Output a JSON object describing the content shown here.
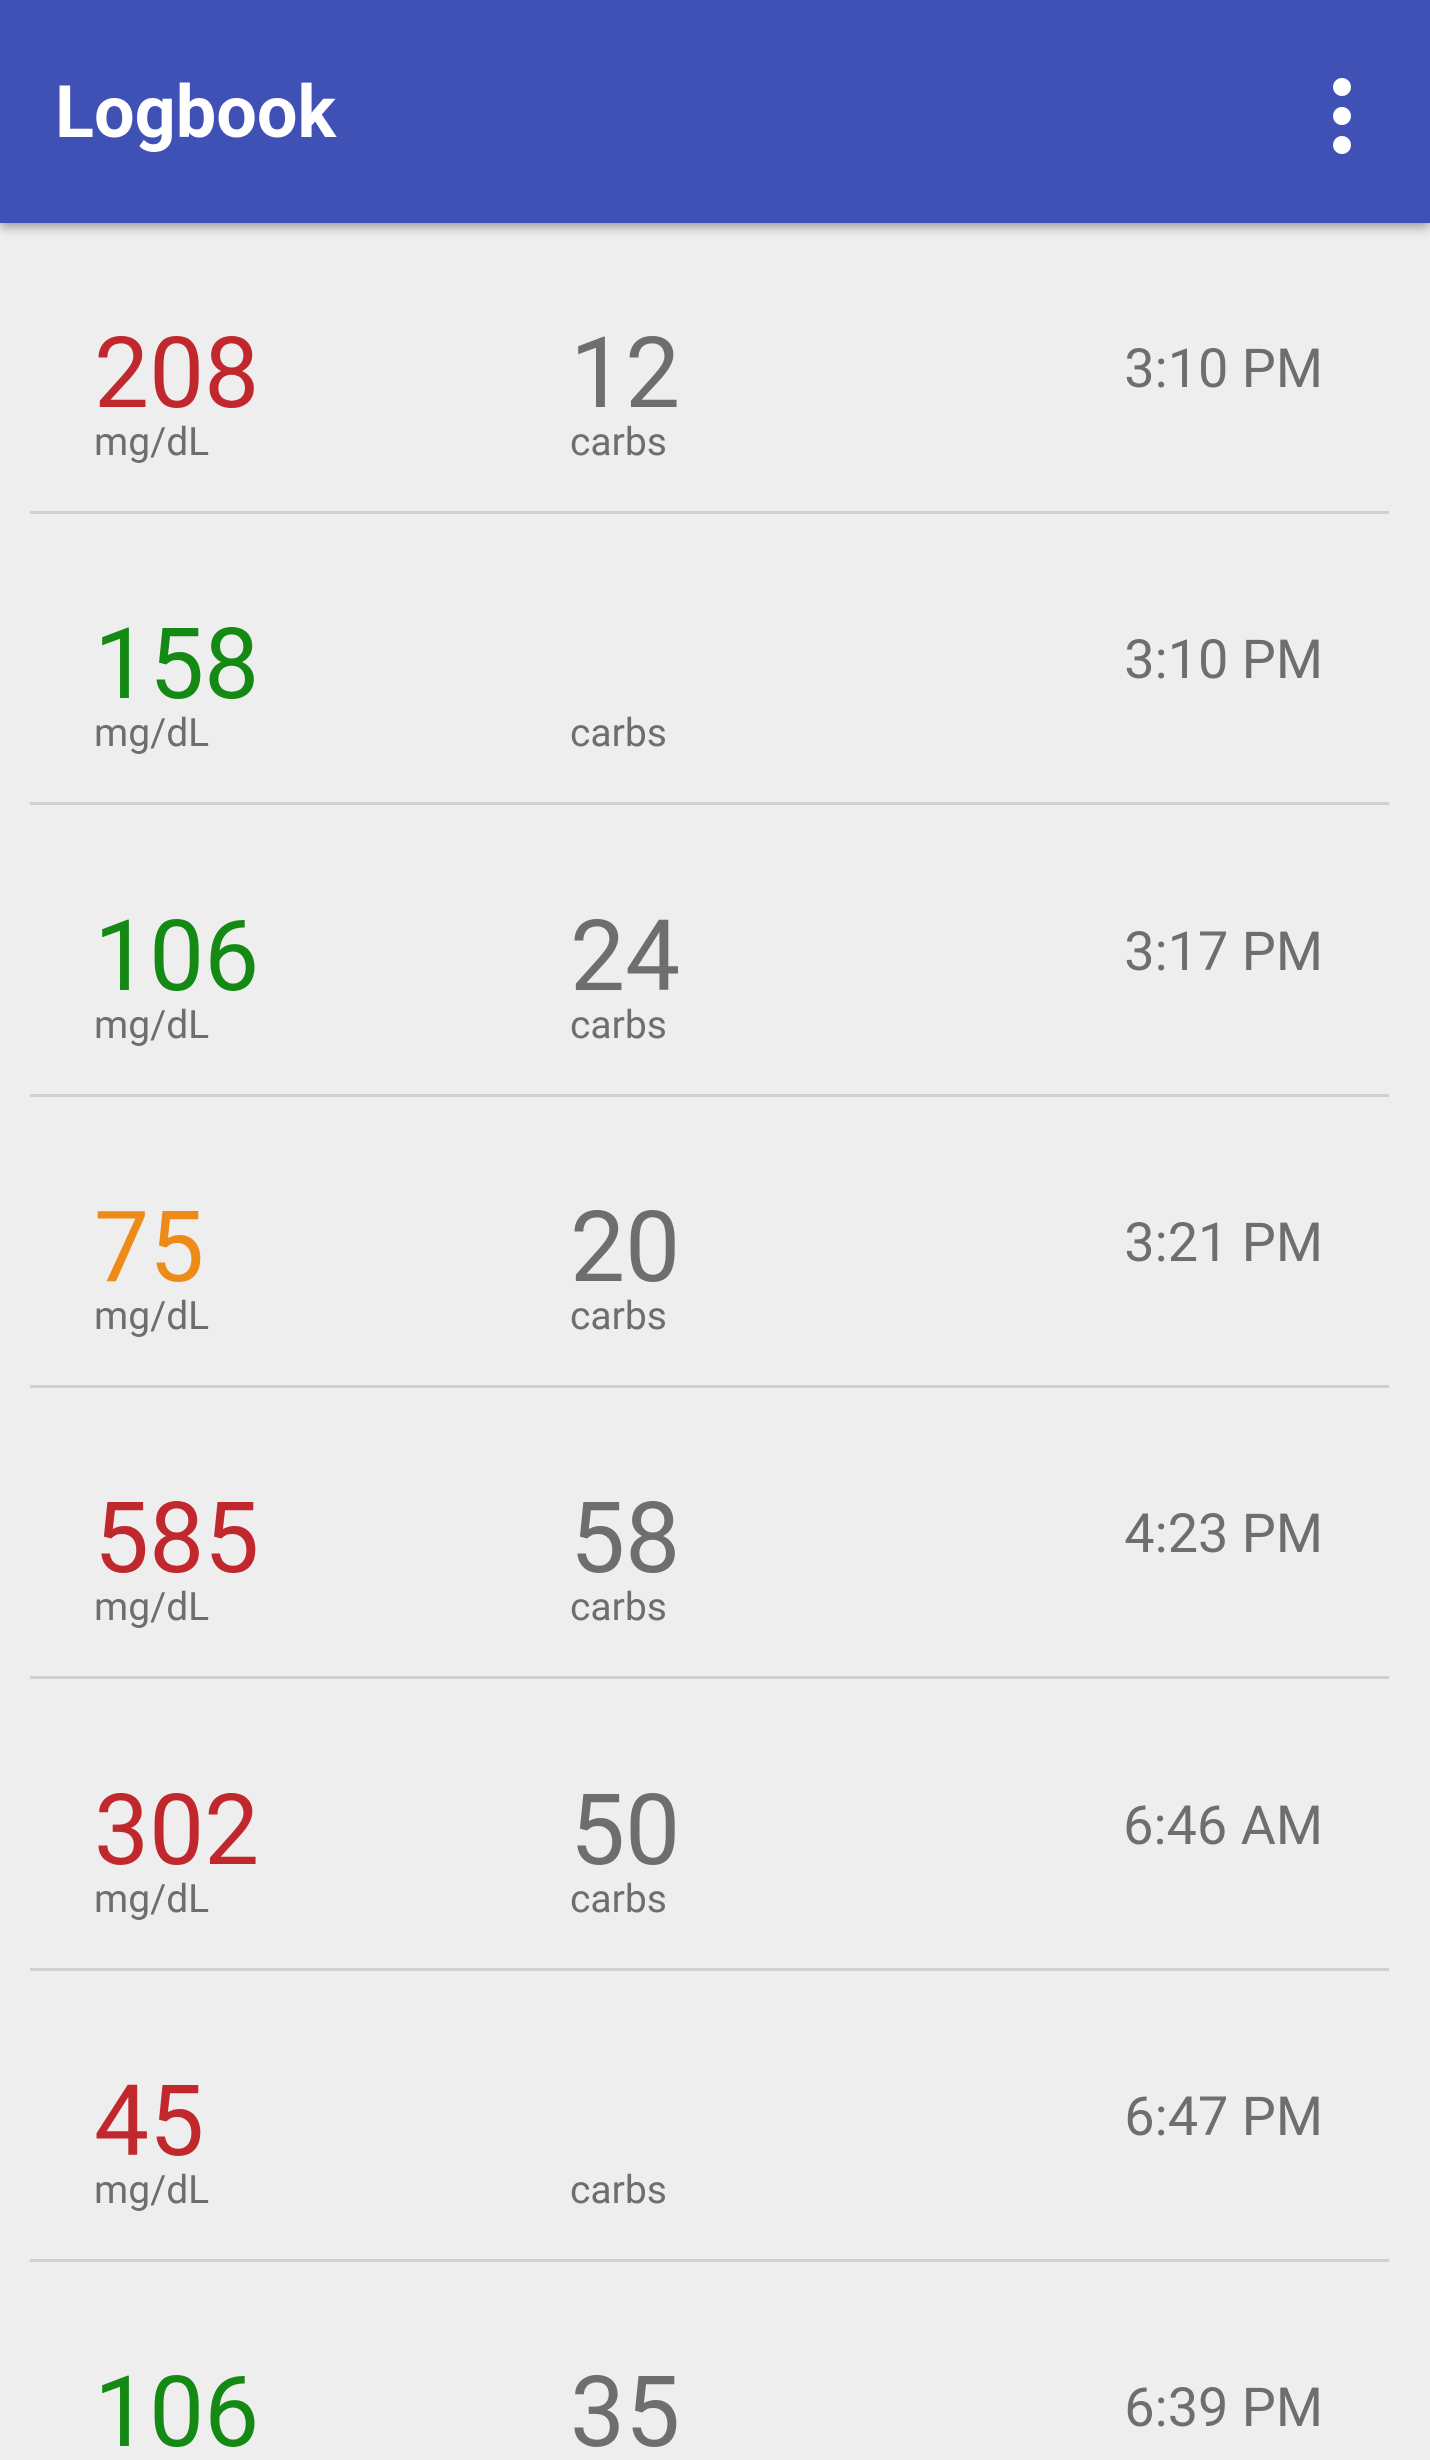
{
  "header": {
    "title": "Logbook"
  },
  "entries": [
    {
      "glucose": "208",
      "glucose_color": "#c0282d",
      "unit": "mg/dL",
      "carbs": "12",
      "carbs_label": "carbs",
      "time": "3:10 PM"
    },
    {
      "glucose": "158",
      "glucose_color": "#148a14",
      "unit": "mg/dL",
      "carbs": null,
      "carbs_label": "carbs",
      "time": "3:10 PM"
    },
    {
      "glucose": "106",
      "glucose_color": "#148a14",
      "unit": "mg/dL",
      "carbs": "24",
      "carbs_label": "carbs",
      "time": "3:17 PM"
    },
    {
      "glucose": "75",
      "glucose_color": "#ee8a18",
      "unit": "mg/dL",
      "carbs": "20",
      "carbs_label": "carbs",
      "time": "3:21 PM"
    },
    {
      "glucose": "585",
      "glucose_color": "#c0282d",
      "unit": "mg/dL",
      "carbs": "58",
      "carbs_label": "carbs",
      "time": "4:23 PM"
    },
    {
      "glucose": "302",
      "glucose_color": "#c0282d",
      "unit": "mg/dL",
      "carbs": "50",
      "carbs_label": "carbs",
      "time": "6:46 AM"
    },
    {
      "glucose": "45",
      "glucose_color": "#c0282d",
      "unit": "mg/dL",
      "carbs": null,
      "carbs_label": "carbs",
      "time": "6:47 PM"
    },
    {
      "glucose": "106",
      "glucose_color": "#148a14",
      "carbs": "35",
      "time": "6:39 PM"
    }
  ]
}
